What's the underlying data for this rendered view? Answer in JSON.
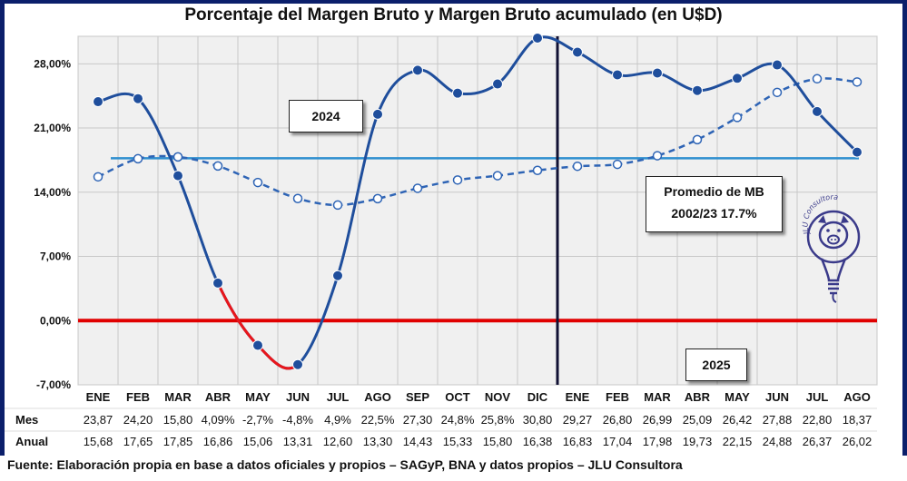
{
  "title": "Porcentaje del Margen Bruto y Margen Bruto acumulado (en U$D)",
  "source": "Fuente: Elaboración propia en base a datos oficiales y propios – SAGyP, BNA y datos propios – JLU Consultora",
  "annotations": {
    "year_2024": "2024",
    "year_2025": "2025",
    "average_line1": "Promedio de MB",
    "average_line2": "2002/23 17.7%"
  },
  "logo": {
    "text": "JLU Consultora",
    "icon": "pig-lightbulb-icon"
  },
  "colors": {
    "mes_line": "#1f4e9c",
    "mes_negative": "#e8161b",
    "anual_line": "#2e64b5",
    "average_line": "#2e8fcf",
    "zero_line": "#e00000",
    "divider": "#111133",
    "background": "#0b1f6b"
  },
  "chart_data": {
    "type": "line",
    "categories": [
      "ENE",
      "FEB",
      "MAR",
      "ABR",
      "MAY",
      "JUN",
      "JUL",
      "AGO",
      "SEP",
      "OCT",
      "NOV",
      "DIC",
      "ENE",
      "FEB",
      "MAR",
      "ABR",
      "MAY",
      "JUN",
      "JUL",
      "AGO"
    ],
    "ylim": [
      -7,
      31
    ],
    "yticks": [
      "-7,00%",
      "0,00%",
      "7,00%",
      "14,00%",
      "21,00%",
      "28,00%"
    ],
    "ytick_values": [
      -7,
      0,
      7,
      14,
      21,
      28
    ],
    "grid": true,
    "average": 17.7,
    "divider_after_index": 11,
    "series": [
      {
        "name": "Mes",
        "style": "solid",
        "values": [
          23.87,
          24.2,
          15.8,
          4.09,
          -2.7,
          -4.8,
          4.9,
          22.5,
          27.3,
          24.8,
          25.8,
          30.8,
          29.27,
          26.8,
          26.99,
          25.09,
          26.42,
          27.88,
          22.8,
          18.37
        ],
        "labels": [
          "23,87",
          "24,20",
          "15,80",
          "4,09%",
          "-2,7%",
          "-4,8%",
          "4,9%",
          "22,5%",
          "27,30",
          "24,8%",
          "25,8%",
          "30,80",
          "29,27",
          "26,80",
          "26,99",
          "25,09",
          "26,42",
          "27,88",
          "22,80",
          "18,37"
        ]
      },
      {
        "name": "Anual",
        "style": "dashed",
        "values": [
          15.68,
          17.65,
          17.85,
          16.86,
          15.06,
          13.31,
          12.6,
          13.3,
          14.43,
          15.33,
          15.8,
          16.38,
          16.83,
          17.04,
          17.98,
          19.73,
          22.15,
          24.88,
          26.37,
          26.02
        ],
        "labels": [
          "15,68",
          "17,65",
          "17,85",
          "16,86",
          "15,06",
          "13,31",
          "12,60",
          "13,30",
          "14,43",
          "15,33",
          "15,80",
          "16,38",
          "16,83",
          "17,04",
          "17,98",
          "19,73",
          "22,15",
          "24,88",
          "26,37",
          "26,02"
        ]
      }
    ]
  }
}
